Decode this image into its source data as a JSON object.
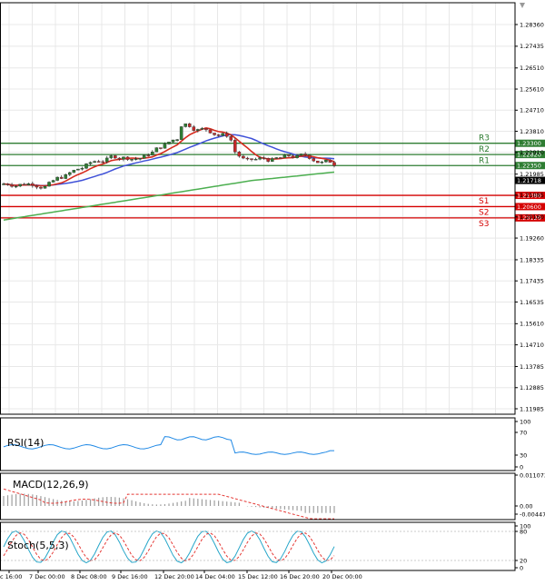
{
  "main": {
    "price_ticks": [
      "1.28360",
      "1.27435",
      "1.26510",
      "1.25610",
      "1.24710",
      "1.23810",
      "1.22910",
      "1.21985",
      "1.21085",
      "1.20160",
      "1.19260",
      "1.18335",
      "1.17435",
      "1.16535",
      "1.15610",
      "1.14710",
      "1.13785",
      "1.12885",
      "1.11985"
    ],
    "current_price": "1.21718",
    "levels": [
      {
        "name": "R3",
        "price": "1.23300",
        "color": "#2e7d32"
      },
      {
        "name": "R2",
        "price": "1.22820",
        "color": "#2e7d32"
      },
      {
        "name": "R1",
        "price": "1.22350",
        "color": "#2e7d32"
      },
      {
        "name": "S1",
        "price": "1.21080",
        "color": "#d50000"
      },
      {
        "name": "S2",
        "price": "1.20600",
        "color": "#d50000"
      },
      {
        "name": "S3",
        "price": "1.20120",
        "color": "#d50000"
      }
    ],
    "colors": {
      "ma_fast": "#d62b1e",
      "ma_mid": "#3f51d8",
      "ma_slow": "#4caf50",
      "bull": "#2e7d32",
      "bear": "#c62828",
      "grid": "#e8e8e8"
    }
  },
  "rsi": {
    "title": "RSI(14)",
    "ticks": [
      "100",
      "70",
      "30",
      "0"
    ],
    "color": "#1e88e5"
  },
  "macd": {
    "title": "MACD(12,26,9)",
    "ticks": [
      "0.011073",
      "0.00",
      "-0.004473"
    ],
    "signal_color": "#e53935",
    "hist_color": "#9e9e9e"
  },
  "stoch": {
    "title": "Stoch(5,5,3)",
    "ticks": [
      "100",
      "80",
      "20",
      "0"
    ],
    "main_color": "#26a6c9",
    "signal_color": "#e53935"
  },
  "time_axis": [
    "c 16:00",
    "7 Dec 00:00",
    "8 Dec 08:00",
    "9 Dec 16:00",
    "12 Dec 20:00",
    "14 Dec 04:00",
    "15 Dec 12:00",
    "16 Dec 20:00",
    "20 Dec 00:00"
  ]
}
